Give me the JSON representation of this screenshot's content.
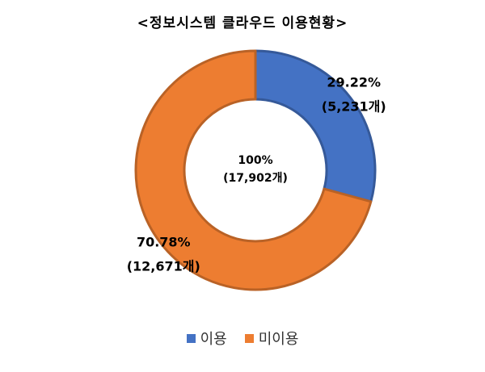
{
  "chart_data": {
    "type": "pie",
    "title": "<정보시스템  클라우드  이용현황>",
    "center_label": {
      "line1": "100%",
      "line2": "(17,902개)"
    },
    "slices": [
      {
        "name": "이용",
        "value": 5231,
        "percent_label": "29.22%",
        "count_label": "(5,231개)",
        "color": "#4472C4"
      },
      {
        "name": "미이용",
        "value": 12671,
        "percent_label": "70.78%",
        "count_label": "(12,671개)",
        "color": "#ED7D31"
      }
    ],
    "legend_placement": "bottom"
  }
}
